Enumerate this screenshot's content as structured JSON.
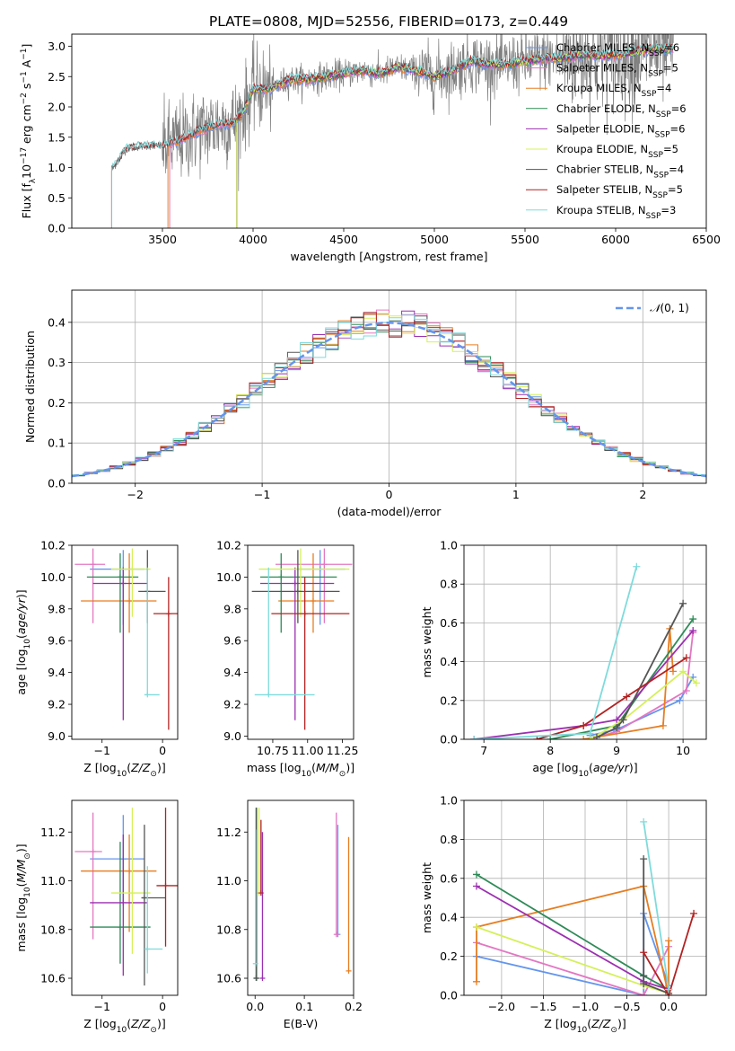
{
  "figure": {
    "title": "PLATE=0808, MJD=52556, FIBERID=0173, z=0.449"
  },
  "colors": {
    "Chabrier MILES": "#6495ED",
    "Salpeter MILES": "#E377C2",
    "Kroupa MILES": "#E67E22",
    "Chabrier ELODIE": "#2E8B57",
    "Salpeter ELODIE": "#9B30B0",
    "Kroupa ELODIE": "#D4F05A",
    "Chabrier STELIB": "#555555",
    "Salpeter STELIB": "#B22222",
    "Kroupa STELIB": "#7FDBDB",
    "data": "#808080"
  },
  "chart_data": [
    {
      "type": "line",
      "title": "PLATE=0808, MJD=52556, FIBERID=0173, z=0.449",
      "xlabel": "wavelength [Angstrom, rest frame]",
      "ylabel": "Flux [f_λ 10^-17 erg cm^-2 s^-1 A^-1]",
      "xlim": [
        3000,
        6500
      ],
      "ylim": [
        0,
        3.2
      ],
      "xticks": [
        3500,
        4000,
        4500,
        5000,
        5500,
        6000,
        6500
      ],
      "yticks": [
        0.0,
        0.5,
        1.0,
        1.5,
        2.0,
        2.5,
        3.0
      ],
      "legend": "top-right",
      "legend_entries": [
        {
          "name": "Chabrier MILES",
          "nssp": "6"
        },
        {
          "name": "Salpeter MILES",
          "nssp": "5"
        },
        {
          "name": "Kroupa MILES",
          "nssp": "4"
        },
        {
          "name": "Chabrier ELODIE",
          "nssp": "6"
        },
        {
          "name": "Salpeter ELODIE",
          "nssp": "6"
        },
        {
          "name": "Kroupa ELODIE",
          "nssp": "5"
        },
        {
          "name": "Chabrier STELIB",
          "nssp": "4"
        },
        {
          "name": "Salpeter STELIB",
          "nssp": "5"
        },
        {
          "name": "Kroupa STELIB",
          "nssp": "3"
        }
      ],
      "continuum": {
        "x": [
          3220,
          3300,
          3400,
          3500,
          3600,
          3700,
          3800,
          3900,
          3950,
          4000,
          4100,
          4200,
          4300,
          4400,
          4500,
          4600,
          4700,
          4800,
          4900,
          5000,
          5100,
          5200,
          5300,
          5400,
          5500,
          5600,
          5700,
          5800,
          5900,
          6000,
          6100,
          6200,
          6300
        ],
        "y": [
          0.95,
          1.3,
          1.35,
          1.35,
          1.45,
          1.6,
          1.7,
          1.75,
          1.95,
          2.3,
          2.3,
          2.45,
          2.45,
          2.5,
          2.55,
          2.6,
          2.55,
          2.65,
          2.6,
          2.5,
          2.6,
          2.75,
          2.7,
          2.7,
          2.75,
          2.8,
          2.8,
          2.85,
          2.85,
          2.85,
          2.9,
          2.95,
          2.95
        ]
      },
      "series_start_wavelength": {
        "Chabrier MILES": 3540,
        "Salpeter MILES": 3540,
        "Kroupa MILES": 3530,
        "Chabrier ELODIE": 3910,
        "Salpeter ELODIE": 3910,
        "Kroupa ELODIE": 3910,
        "Chabrier STELIB": 3220,
        "Salpeter STELIB": 3220,
        "Kroupa STELIB": 3220
      },
      "data_range": [
        3220,
        6320
      ]
    },
    {
      "type": "line",
      "xlabel": "(data-model)/error",
      "ylabel": "Normed distribution",
      "xlim": [
        -2.5,
        2.5
      ],
      "ylim": [
        0,
        0.48
      ],
      "xticks": [
        -2,
        -1,
        0,
        1,
        2
      ],
      "yticks": [
        0.0,
        0.1,
        0.2,
        0.3,
        0.4
      ],
      "legend": "top-right",
      "legend_label": "N(0,1)",
      "bin_width": 0.1,
      "histogram_style": "step",
      "grid": true
    },
    {
      "type": "scatter",
      "xlabel": "Z [log10(Z/Z☉)]",
      "ylabel": "age  [log10(age/yr)]",
      "xlim": [
        -1.5,
        0.25
      ],
      "ylim": [
        8.98,
        10.2
      ],
      "xticks": [
        -1,
        0
      ],
      "yticks": [
        9.0,
        9.2,
        9.4,
        9.6,
        9.8,
        10.0,
        10.2
      ],
      "points": [
        {
          "series": "Chabrier MILES",
          "x": -0.65,
          "xerr": [
            0.55,
            0.35
          ],
          "y": 10.05,
          "yerr": [
            0.35,
            0.12
          ]
        },
        {
          "series": "Salpeter MILES",
          "x": -1.15,
          "xerr": [
            0.3,
            0.2
          ],
          "y": 10.08,
          "yerr": [
            0.37,
            0.1
          ]
        },
        {
          "series": "Kroupa MILES",
          "x": -0.55,
          "xerr": [
            0.8,
            0.45
          ],
          "y": 9.85,
          "yerr": [
            0.2,
            0.3
          ]
        },
        {
          "series": "Chabrier ELODIE",
          "x": -0.7,
          "xerr": [
            0.55,
            0.3
          ],
          "y": 10.0,
          "yerr": [
            0.35,
            0.15
          ]
        },
        {
          "series": "Salpeter ELODIE",
          "x": -0.65,
          "xerr": [
            0.5,
            0.4
          ],
          "y": 9.96,
          "yerr": [
            0.86,
            0.1
          ]
        },
        {
          "series": "Kroupa ELODIE",
          "x": -0.5,
          "xerr": [
            0.35,
            0.3
          ],
          "y": 10.05,
          "yerr": [
            0.3,
            0.13
          ]
        },
        {
          "series": "Chabrier STELIB",
          "x": -0.25,
          "xerr": [
            0.15,
            0.3
          ],
          "y": 9.91,
          "yerr": [
            0.2,
            0.26
          ]
        },
        {
          "series": "Salpeter STELIB",
          "x": 0.1,
          "xerr": [
            0.25,
            0.25
          ],
          "y": 9.77,
          "yerr": [
            0.73,
            0.23
          ]
        },
        {
          "series": "Kroupa STELIB",
          "x": -0.25,
          "xerr": [
            0.05,
            0.2
          ],
          "y": 9.26,
          "yerr": [
            0.0,
            0.8
          ]
        }
      ]
    },
    {
      "type": "scatter",
      "xlabel": "mass [log10(M/M☉)]",
      "ylabel": "",
      "xlim": [
        10.57,
        11.33
      ],
      "ylim": [
        8.98,
        10.2
      ],
      "xticks": [
        10.75,
        11.0,
        11.25
      ],
      "yticks": [
        9.0,
        9.2,
        9.4,
        9.6,
        9.8,
        10.0,
        10.2
      ],
      "points": [
        {
          "series": "Chabrier MILES",
          "x": 11.09,
          "xerr": [
            0.17,
            0.18
          ],
          "y": 10.05,
          "yerr": [
            0.35,
            0.12
          ]
        },
        {
          "series": "Salpeter MILES",
          "x": 11.12,
          "xerr": [
            0.35,
            0.2
          ],
          "y": 10.08,
          "yerr": [
            0.37,
            0.1
          ]
        },
        {
          "series": "Kroupa MILES",
          "x": 11.04,
          "xerr": [
            0.25,
            0.15
          ],
          "y": 9.85,
          "yerr": [
            0.2,
            0.3
          ]
        },
        {
          "series": "Chabrier ELODIE",
          "x": 10.81,
          "xerr": [
            0.15,
            0.4
          ],
          "y": 10.0,
          "yerr": [
            0.35,
            0.15
          ]
        },
        {
          "series": "Salpeter ELODIE",
          "x": 10.91,
          "xerr": [
            0.25,
            0.28
          ],
          "y": 9.96,
          "yerr": [
            0.86,
            0.1
          ]
        },
        {
          "series": "Kroupa ELODIE",
          "x": 10.95,
          "xerr": [
            0.3,
            0.35
          ],
          "y": 10.05,
          "yerr": [
            0.3,
            0.13
          ]
        },
        {
          "series": "Chabrier STELIB",
          "x": 10.93,
          "xerr": [
            0.33,
            0.3
          ],
          "y": 9.91,
          "yerr": [
            0.2,
            0.26
          ]
        },
        {
          "series": "Salpeter STELIB",
          "x": 10.98,
          "xerr": [
            0.24,
            0.32
          ],
          "y": 9.77,
          "yerr": [
            0.73,
            0.23
          ]
        },
        {
          "series": "Kroupa STELIB",
          "x": 10.72,
          "xerr": [
            0.1,
            0.33
          ],
          "y": 9.26,
          "yerr": [
            0.0,
            0.8
          ]
        }
      ]
    },
    {
      "type": "line",
      "xlabel": "age  [log10(age/yr)]",
      "ylabel": "mass weight",
      "xlim": [
        6.7,
        10.35
      ],
      "ylim": [
        0,
        1.0
      ],
      "xticks": [
        7,
        8,
        9,
        10
      ],
      "yticks": [
        0.0,
        0.2,
        0.4,
        0.6,
        0.8,
        1.0
      ],
      "grid": true,
      "series": [
        {
          "name": "Chabrier MILES",
          "x": [
            8.6,
            9.0,
            9.95,
            10.15
          ],
          "y": [
            0.02,
            0.05,
            0.2,
            0.32
          ]
        },
        {
          "name": "Salpeter MILES",
          "x": [
            8.6,
            9.0,
            10.05,
            10.15
          ],
          "y": [
            0.0,
            0.04,
            0.25,
            0.55
          ]
        },
        {
          "name": "Kroupa MILES",
          "x": [
            8.5,
            9.7,
            9.8,
            9.85
          ],
          "y": [
            0.0,
            0.07,
            0.57,
            0.35
          ]
        },
        {
          "name": "Chabrier ELODIE",
          "x": [
            8.0,
            9.0,
            10.15
          ],
          "y": [
            0.0,
            0.07,
            0.62
          ]
        },
        {
          "name": "Salpeter ELODIE",
          "x": [
            6.85,
            8.5,
            9.0,
            10.15
          ],
          "y": [
            0.0,
            0.07,
            0.1,
            0.56
          ]
        },
        {
          "name": "Kroupa ELODIE",
          "x": [
            8.6,
            9.1,
            10.0,
            10.2
          ],
          "y": [
            0.0,
            0.1,
            0.35,
            0.29
          ]
        },
        {
          "name": "Chabrier STELIB",
          "x": [
            8.7,
            9.0,
            9.1,
            10.0
          ],
          "y": [
            0.01,
            0.06,
            0.1,
            0.7
          ]
        },
        {
          "name": "Salpeter STELIB",
          "x": [
            7.8,
            8.5,
            9.15,
            10.05
          ],
          "y": [
            0.0,
            0.07,
            0.22,
            0.42
          ]
        },
        {
          "name": "Kroupa STELIB",
          "x": [
            6.85,
            8.6,
            9.3
          ],
          "y": [
            0.0,
            0.03,
            0.89
          ]
        }
      ]
    },
    {
      "type": "scatter",
      "xlabel": "Z [log10(Z/Z☉)]",
      "ylabel": "mass [log10(M/M☉)]",
      "xlim": [
        -1.5,
        0.25
      ],
      "ylim": [
        10.53,
        11.33
      ],
      "xticks": [
        -1,
        0
      ],
      "yticks": [
        10.6,
        10.8,
        11.0,
        11.2
      ],
      "points": [
        {
          "series": "Chabrier MILES",
          "x": -0.65,
          "xerr": [
            0.55,
            0.35
          ],
          "y": 11.09,
          "yerr": [
            0.17,
            0.18
          ]
        },
        {
          "series": "Salpeter MILES",
          "x": -1.15,
          "xerr": [
            0.3,
            0.15
          ],
          "y": 11.12,
          "yerr": [
            0.36,
            0.16
          ]
        },
        {
          "series": "Kroupa MILES",
          "x": -0.55,
          "xerr": [
            0.8,
            0.45
          ],
          "y": 11.04,
          "yerr": [
            0.25,
            0.15
          ]
        },
        {
          "series": "Chabrier ELODIE",
          "x": -0.7,
          "xerr": [
            0.5,
            0.5
          ],
          "y": 10.81,
          "yerr": [
            0.15,
            0.35
          ]
        },
        {
          "series": "Salpeter ELODIE",
          "x": -0.65,
          "xerr": [
            0.55,
            0.4
          ],
          "y": 10.91,
          "yerr": [
            0.3,
            0.28
          ]
        },
        {
          "series": "Kroupa ELODIE",
          "x": -0.5,
          "xerr": [
            0.35,
            0.3
          ],
          "y": 10.95,
          "yerr": [
            0.25,
            0.35
          ]
        },
        {
          "series": "Chabrier STELIB",
          "x": -0.3,
          "xerr": [
            0.05,
            0.35
          ],
          "y": 10.93,
          "yerr": [
            0.36,
            0.3
          ]
        },
        {
          "series": "Salpeter STELIB",
          "x": 0.05,
          "xerr": [
            0.15,
            0.2
          ],
          "y": 10.98,
          "yerr": [
            0.25,
            0.32
          ]
        },
        {
          "series": "Kroupa STELIB",
          "x": -0.25,
          "xerr": [
            0.05,
            0.25
          ],
          "y": 10.72,
          "yerr": [
            0.1,
            0.34
          ]
        }
      ]
    },
    {
      "type": "scatter",
      "xlabel": "E(B-V)",
      "ylabel": "",
      "xlim": [
        -0.015,
        0.2
      ],
      "ylim": [
        10.53,
        11.33
      ],
      "xticks": [
        0.0,
        0.1,
        0.2
      ],
      "yticks": [
        10.6,
        10.8,
        11.0,
        11.2
      ],
      "points": [
        {
          "series": "Chabrier MILES",
          "x": 0.168,
          "y": 10.78,
          "yerr": [
            0.0,
            0.45
          ]
        },
        {
          "series": "Salpeter MILES",
          "x": 0.165,
          "y": 10.78,
          "yerr": [
            0.0,
            0.5
          ]
        },
        {
          "series": "Kroupa MILES",
          "x": 0.19,
          "y": 10.63,
          "yerr": [
            0.0,
            0.55
          ]
        },
        {
          "series": "Chabrier ELODIE",
          "x": 0.002,
          "y": 10.6,
          "yerr": [
            0.0,
            0.7
          ]
        },
        {
          "series": "Salpeter ELODIE",
          "x": 0.015,
          "y": 10.6,
          "yerr": [
            0.0,
            0.6
          ]
        },
        {
          "series": "Kroupa ELODIE",
          "x": 0.008,
          "y": 10.95,
          "yerr": [
            0.0,
            0.35
          ]
        },
        {
          "series": "Chabrier STELIB",
          "x": 0.003,
          "y": 10.6,
          "yerr": [
            0.0,
            0.7
          ]
        },
        {
          "series": "Salpeter STELIB",
          "x": 0.012,
          "y": 10.95,
          "yerr": [
            0.0,
            0.3
          ]
        },
        {
          "series": "Kroupa STELIB",
          "x": 0.001,
          "y": 10.66,
          "yerr": [
            0.0,
            0.55
          ]
        }
      ]
    },
    {
      "type": "line",
      "xlabel": "Z [log10(Z/Z☉)]",
      "ylabel": "mass weight",
      "xlim": [
        -2.45,
        0.45
      ],
      "ylim": [
        0,
        1.0
      ],
      "xticks": [
        -2.0,
        -1.5,
        -1.0,
        -0.5,
        0.0
      ],
      "yticks": [
        0.0,
        0.2,
        0.4,
        0.6,
        0.8,
        1.0
      ],
      "grid": true,
      "series": [
        {
          "name": "Chabrier MILES",
          "x": [
            -2.3,
            -0.3,
            -0.3,
            0.0
          ],
          "y": [
            0.2,
            0.0,
            0.42,
            0.05
          ]
        },
        {
          "name": "Salpeter MILES",
          "x": [
            -2.3,
            -0.3,
            0.0
          ],
          "y": [
            0.27,
            0.0,
            0.25
          ]
        },
        {
          "name": "Kroupa MILES",
          "x": [
            -2.3,
            -2.3,
            -0.3,
            0.0,
            0.0
          ],
          "y": [
            0.07,
            0.35,
            0.56,
            0.0,
            0.28
          ]
        },
        {
          "name": "Chabrier ELODIE",
          "x": [
            -2.3,
            -0.3,
            0.0
          ],
          "y": [
            0.62,
            0.1,
            0.03
          ]
        },
        {
          "name": "Salpeter ELODIE",
          "x": [
            -2.3,
            -0.3,
            0.0
          ],
          "y": [
            0.56,
            0.07,
            0.03
          ]
        },
        {
          "name": "Kroupa ELODIE",
          "x": [
            -2.3,
            -0.3,
            0.0
          ],
          "y": [
            0.35,
            0.05,
            0.01
          ]
        },
        {
          "name": "Chabrier STELIB",
          "x": [
            -0.3,
            -0.3,
            -0.3,
            0.0
          ],
          "y": [
            0.7,
            0.1,
            0.06,
            0.01
          ]
        },
        {
          "name": "Salpeter STELIB",
          "x": [
            -0.3,
            0.0,
            0.3
          ],
          "y": [
            0.22,
            0.0,
            0.42
          ]
        },
        {
          "name": "Kroupa STELIB",
          "x": [
            -0.3,
            0.0
          ],
          "y": [
            0.89,
            0.03
          ]
        }
      ]
    }
  ]
}
